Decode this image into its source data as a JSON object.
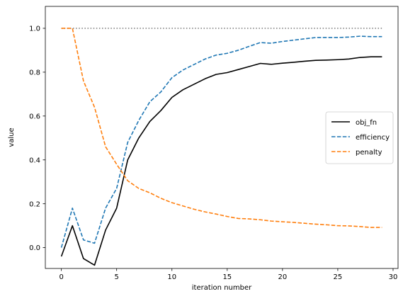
{
  "chart_data": {
    "type": "line",
    "title": "",
    "xlabel": "iteration number",
    "ylabel": "value",
    "xlim": [
      -1.45,
      30.45
    ],
    "ylim": [
      -0.095,
      1.1
    ],
    "xticks": [
      0,
      5,
      10,
      15,
      20,
      25,
      30
    ],
    "xtick_labels": [
      "0",
      "5",
      "10",
      "15",
      "20",
      "25",
      "30"
    ],
    "yticks": [
      0.0,
      0.2,
      0.4,
      0.6,
      0.8,
      1.0
    ],
    "ytick_labels": [
      "0.0",
      "0.2",
      "0.4",
      "0.6",
      "0.8",
      "1.0"
    ],
    "grid": false,
    "legend": {
      "position": "center-right"
    },
    "x": [
      0,
      1,
      2,
      3,
      4,
      5,
      6,
      7,
      8,
      9,
      10,
      11,
      12,
      13,
      14,
      15,
      16,
      17,
      18,
      19,
      20,
      21,
      22,
      23,
      24,
      25,
      26,
      27,
      28,
      29
    ],
    "series": [
      {
        "name": "obj_fn",
        "color": "#000000",
        "style": "solid",
        "values": [
          -0.04,
          0.1,
          -0.05,
          -0.08,
          0.08,
          0.18,
          0.4,
          0.5,
          0.575,
          0.625,
          0.685,
          0.72,
          0.745,
          0.77,
          0.79,
          0.798,
          0.812,
          0.826,
          0.84,
          0.836,
          0.841,
          0.845,
          0.85,
          0.854,
          0.855,
          0.857,
          0.86,
          0.867,
          0.87,
          0.87
        ]
      },
      {
        "name": "efficiency",
        "color": "#1f77b4",
        "style": "dashed",
        "values": [
          0.0,
          0.18,
          0.035,
          0.02,
          0.18,
          0.27,
          0.48,
          0.58,
          0.665,
          0.71,
          0.775,
          0.81,
          0.835,
          0.86,
          0.878,
          0.886,
          0.9,
          0.918,
          0.935,
          0.932,
          0.94,
          0.946,
          0.952,
          0.958,
          0.958,
          0.958,
          0.96,
          0.964,
          0.962,
          0.962
        ]
      },
      {
        "name": "penalty",
        "color": "#ff7f0e",
        "style": "dashed",
        "values": [
          1.0,
          1.0,
          0.76,
          0.64,
          0.46,
          0.38,
          0.305,
          0.27,
          0.25,
          0.225,
          0.205,
          0.19,
          0.175,
          0.163,
          0.153,
          0.142,
          0.133,
          0.131,
          0.127,
          0.121,
          0.118,
          0.115,
          0.111,
          0.107,
          0.104,
          0.1,
          0.099,
          0.096,
          0.092,
          0.092
        ]
      }
    ],
    "reference_line": {
      "y": 1.0,
      "x_range": [
        0,
        29
      ],
      "color": "#808080",
      "style": "dotted"
    }
  }
}
